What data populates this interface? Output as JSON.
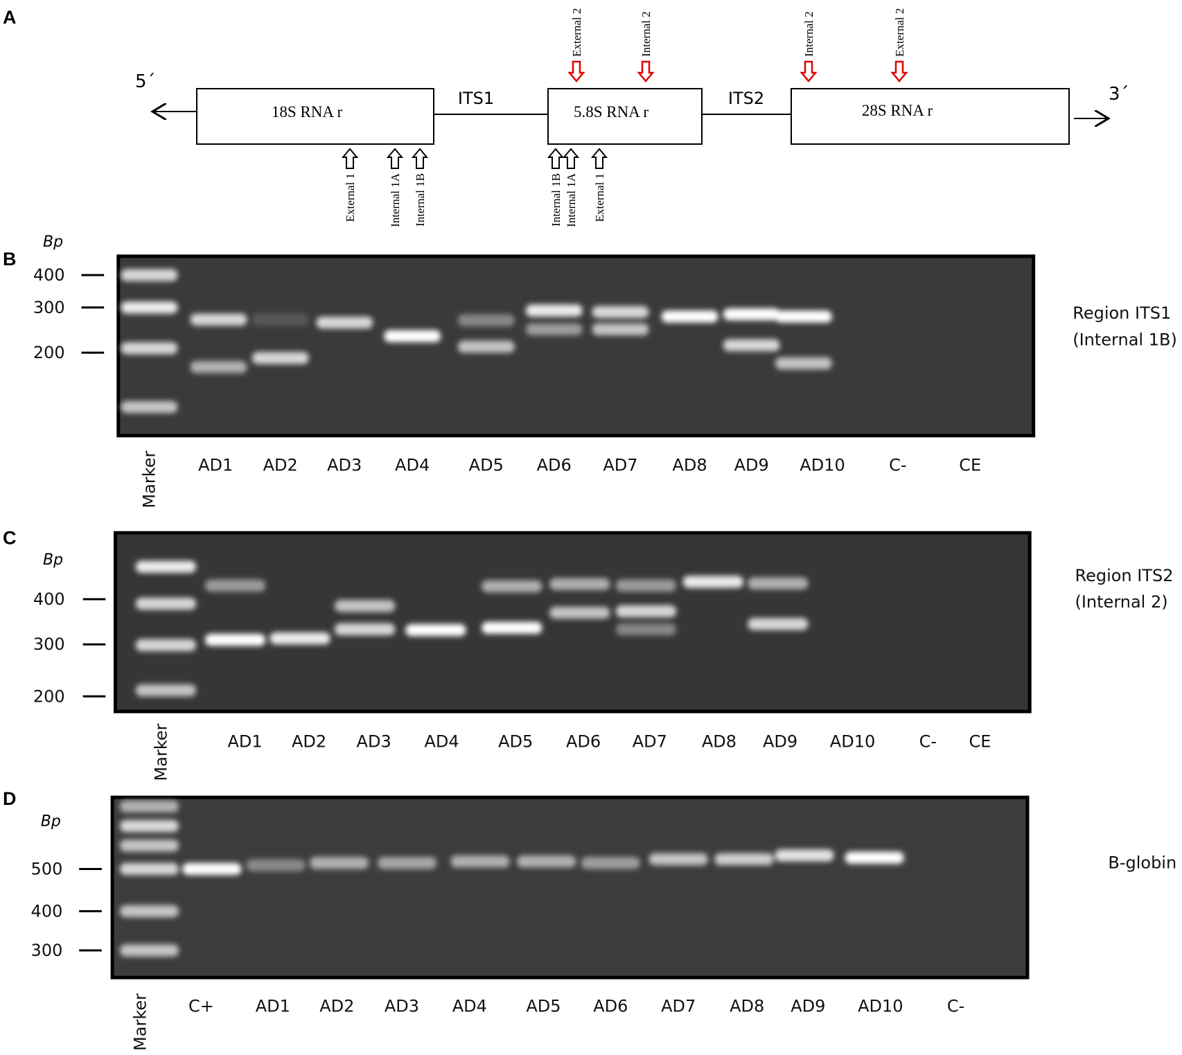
{
  "panel_a": {
    "label": "A",
    "five_prime": "5´",
    "three_prime": "3´",
    "boxes": [
      "18S RNA r",
      "5.8S  RNA r",
      "28S RNA r"
    ],
    "spacers": [
      "ITS1",
      "ITS2"
    ],
    "primers_top": [
      "External 2",
      "Internal 2",
      "Internal 2",
      "External 2"
    ],
    "primers_bottom": [
      "External 1",
      "Internal 1A",
      "Internal 1B",
      "Internal 1B",
      "Internal 1A",
      "External 1"
    ]
  },
  "gels": [
    {
      "label": "B",
      "unit": "Bp",
      "ladder": [
        "400",
        "300",
        "200"
      ],
      "lanes": [
        "Marker",
        "AD1",
        "AD2",
        "AD3",
        "AD4",
        "AD5",
        "AD6",
        "AD7",
        "AD8",
        "AD9",
        "AD10",
        "C-",
        "CE"
      ],
      "region": [
        "Region ITS1",
        "(Internal 1B)"
      ]
    },
    {
      "label": "C",
      "unit": "Bp",
      "ladder": [
        "400",
        "300",
        "200"
      ],
      "lanes": [
        "Marker",
        "AD1",
        "AD2",
        "AD3",
        "AD4",
        "AD5",
        "AD6",
        "AD7",
        "AD8",
        "AD9",
        "AD10",
        "C-",
        "CE"
      ],
      "region": [
        "Region ITS2",
        "(Internal 2)"
      ]
    },
    {
      "label": "D",
      "unit": "Bp",
      "ladder": [
        "500",
        "400",
        "300"
      ],
      "lanes": [
        "Marker",
        "C+",
        "AD1",
        "AD2",
        "AD3",
        "AD4",
        "AD5",
        "AD6",
        "AD7",
        "AD8",
        "AD9",
        "AD10",
        "C-"
      ],
      "region": [
        "B-globin"
      ]
    }
  ]
}
